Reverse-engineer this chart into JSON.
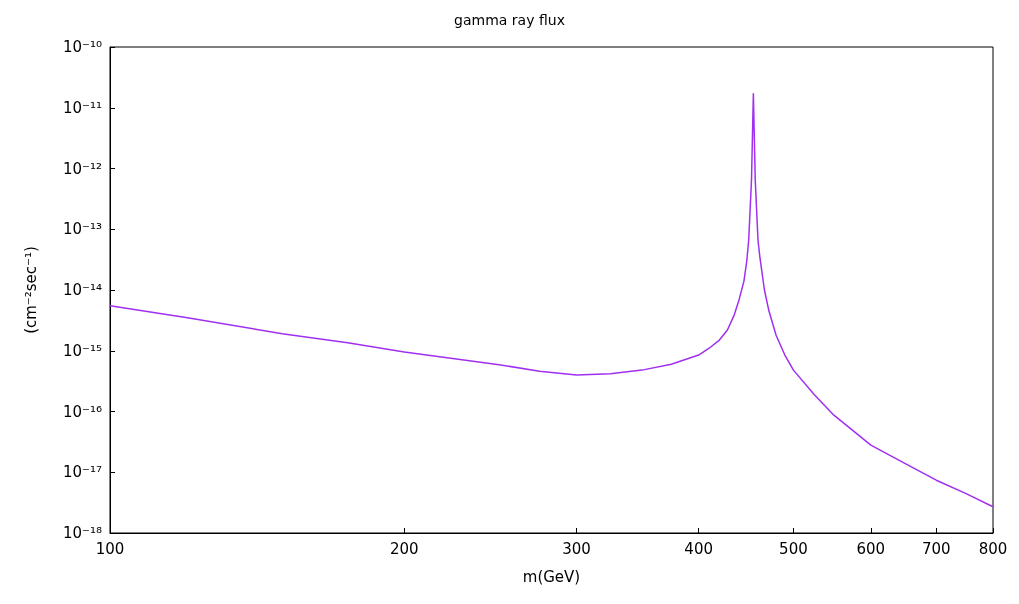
{
  "chart_data": {
    "type": "line",
    "title": "gamma ray flux",
    "xlabel": "m(GeV)",
    "ylabel": "(cm⁻²sec⁻¹)",
    "log": "xy",
    "grid": false,
    "marker": "none",
    "x": [
      100,
      120,
      150,
      175,
      200,
      250,
      275,
      300,
      325,
      350,
      375,
      400,
      410,
      420,
      428,
      435,
      440,
      445,
      448,
      450,
      453,
      455,
      457,
      460,
      462,
      467,
      472,
      480,
      490,
      500,
      525,
      550,
      600,
      650,
      700,
      750,
      800
    ],
    "series": [
      {
        "color": "#a030f0",
        "values": [
          5.5e-15,
          3.5e-15,
          1.9e-15,
          1.35e-15,
          9.5e-16,
          5.9e-16,
          4.6e-16,
          4e-16,
          4.2e-16,
          4.8e-16,
          6e-16,
          8.5e-16,
          1.1e-15,
          1.5e-15,
          2.2e-15,
          3.9e-15,
          7e-15,
          1.4e-14,
          3e-14,
          6.6e-14,
          6.5e-13,
          1.7e-11,
          6.5e-13,
          6.6e-14,
          3.5e-14,
          1e-14,
          4.5e-15,
          1.8e-15,
          8.5e-16,
          4.8e-16,
          1.9e-16,
          8.7e-17,
          2.8e-17,
          1.4e-17,
          7.4e-18,
          4.5e-18,
          2.7e-18
        ]
      }
    ],
    "xlim": [
      100,
      800
    ],
    "xticks": [
      100,
      200,
      300,
      400,
      500,
      600,
      700,
      800
    ],
    "ylim": [
      1e-18,
      1e-10
    ],
    "yticks": [
      {
        "value": 1e-18,
        "label": "10⁻¹⁸"
      },
      {
        "value": 1e-17,
        "label": "10⁻¹⁷"
      },
      {
        "value": 1e-16,
        "label": "10⁻¹⁶"
      },
      {
        "value": 1e-15,
        "label": "10⁻¹⁵"
      },
      {
        "value": 1e-14,
        "label": "10⁻¹⁴"
      },
      {
        "value": 1e-13,
        "label": "10⁻¹³"
      },
      {
        "value": 1e-12,
        "label": "10⁻¹²"
      },
      {
        "value": 1e-11,
        "label": "10⁻¹¹"
      },
      {
        "value": 1e-10,
        "label": "10⁻¹⁰"
      }
    ]
  }
}
